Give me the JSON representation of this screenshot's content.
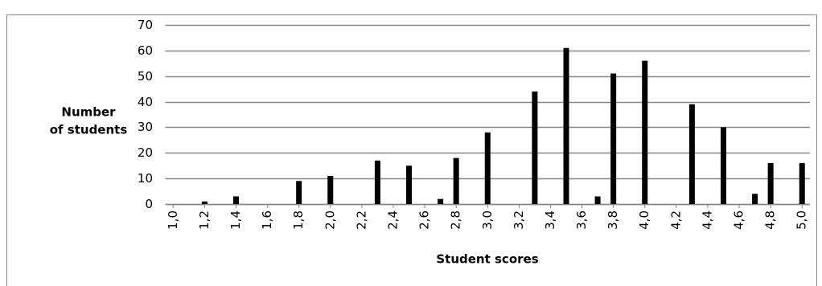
{
  "chart_data": {
    "type": "bar",
    "x_label": "Student scores",
    "y_label": [
      "Number",
      "of students"
    ],
    "categories": [
      "1,0",
      null,
      "1,2",
      null,
      "1,4",
      null,
      "1,6",
      null,
      "1,8",
      null,
      "2,0",
      null,
      "2,2",
      null,
      "2,4",
      null,
      "2,6",
      null,
      "2,8",
      null,
      "3,0",
      null,
      "3,2",
      null,
      "3,4",
      null,
      "3,6",
      null,
      "3,8",
      null,
      "4,0",
      null,
      "4,2",
      null,
      "4,4",
      null,
      "4,6",
      null,
      "4,8",
      null,
      "5,0"
    ],
    "values": [
      0,
      0,
      1,
      0,
      3,
      0,
      0,
      0,
      9,
      0,
      11,
      0,
      0,
      17,
      0,
      15,
      0,
      2,
      18,
      0,
      28,
      0,
      0,
      44,
      0,
      61,
      0,
      3,
      51,
      0,
      56,
      0,
      0,
      39,
      0,
      30,
      0,
      4,
      16,
      0,
      16
    ],
    "color": "#000000",
    "ylim": [
      0,
      70
    ],
    "yticks": [
      0,
      10,
      20,
      30,
      40,
      50,
      60,
      70
    ],
    "grid": true
  }
}
